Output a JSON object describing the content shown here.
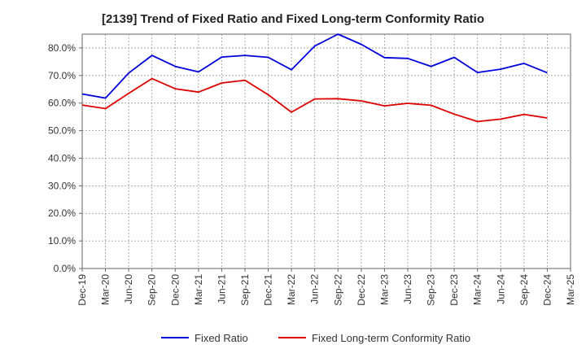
{
  "chart_data": {
    "type": "line",
    "title": "[2139]  Trend of Fixed Ratio and Fixed Long-term Conformity Ratio",
    "xlabel": "",
    "ylabel": "",
    "ylim": [
      0,
      85
    ],
    "y_ticks": [
      0,
      10,
      20,
      30,
      40,
      50,
      60,
      70,
      80
    ],
    "y_tick_labels": [
      "0.0%",
      "10.0%",
      "20.0%",
      "30.0%",
      "40.0%",
      "50.0%",
      "60.0%",
      "70.0%",
      "80.0%"
    ],
    "x_tick_labels": [
      "Dec-19",
      "Mar-20",
      "Jun-20",
      "Sep-20",
      "Dec-20",
      "Mar-21",
      "Jun-21",
      "Sep-21",
      "Dec-21",
      "Mar-22",
      "Jun-22",
      "Sep-22",
      "Dec-22",
      "Mar-23",
      "Jun-23",
      "Sep-23",
      "Dec-23",
      "Mar-24",
      "Jun-24",
      "Sep-24",
      "Dec-24",
      "Mar-25"
    ],
    "categories": [
      "Dec-19",
      "Mar-20",
      "Jun-20",
      "Sep-20",
      "Dec-20",
      "Mar-21",
      "Jun-21",
      "Sep-21",
      "Dec-21",
      "Mar-22",
      "Jun-22",
      "Sep-22",
      "Dec-22",
      "Mar-23",
      "Jun-23",
      "Sep-23",
      "Dec-23",
      "Mar-24",
      "Jun-24",
      "Sep-24",
      "Dec-24"
    ],
    "grid": true,
    "legend_position": "bottom",
    "series": [
      {
        "name": "Fixed Ratio",
        "color": "#0000dd",
        "values": [
          63.3,
          61.8,
          70.9,
          77.3,
          73.3,
          71.3,
          76.7,
          77.3,
          76.6,
          72.1,
          80.7,
          85.0,
          81.3,
          76.5,
          76.2,
          73.3,
          76.6,
          71.1,
          72.3,
          74.4,
          71.0
        ]
      },
      {
        "name": "Fixed Long-term Conformity Ratio",
        "color": "#dd0000",
        "values": [
          59.3,
          58.0,
          63.5,
          68.9,
          65.2,
          64.0,
          67.3,
          68.3,
          63.0,
          56.7,
          61.5,
          61.6,
          60.8,
          59.0,
          59.9,
          59.2,
          56.0,
          53.3,
          54.2,
          55.9,
          54.6
        ]
      }
    ]
  }
}
